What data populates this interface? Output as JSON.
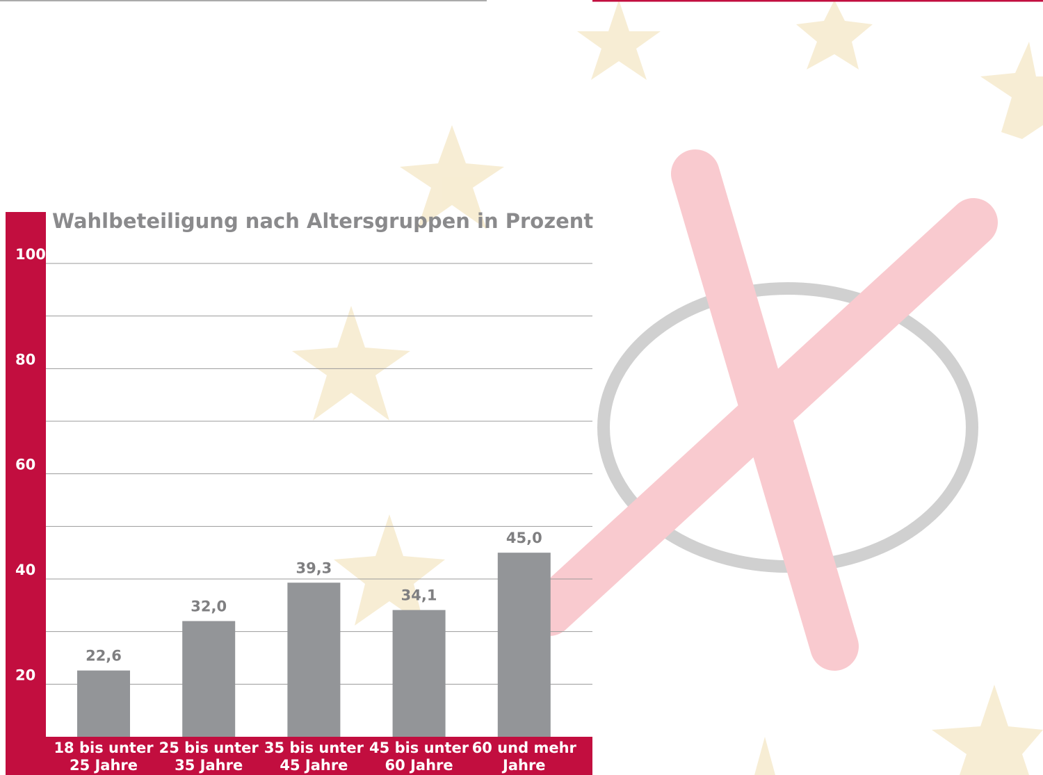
{
  "chart_data": {
    "type": "bar",
    "title": "Wahlbeteiligung nach Altersgruppen in Prozent",
    "categories": [
      "18 bis unter 25 Jahre",
      "25 bis unter 35 Jahre",
      "35 bis unter 45 Jahre",
      "45 bis unter 60 Jahre",
      "60 und mehr Jahre"
    ],
    "values": [
      22.6,
      32.0,
      39.3,
      34.1,
      45.0
    ],
    "value_labels": [
      "22,6",
      "32,0",
      "39,3",
      "34,1",
      "45,0"
    ],
    "color": "#939598",
    "ylim": [
      10,
      100
    ],
    "yticks": [
      20,
      40,
      60,
      80,
      100
    ],
    "minor_yticks": [
      30,
      50,
      70,
      90
    ],
    "grid": true
  }
}
